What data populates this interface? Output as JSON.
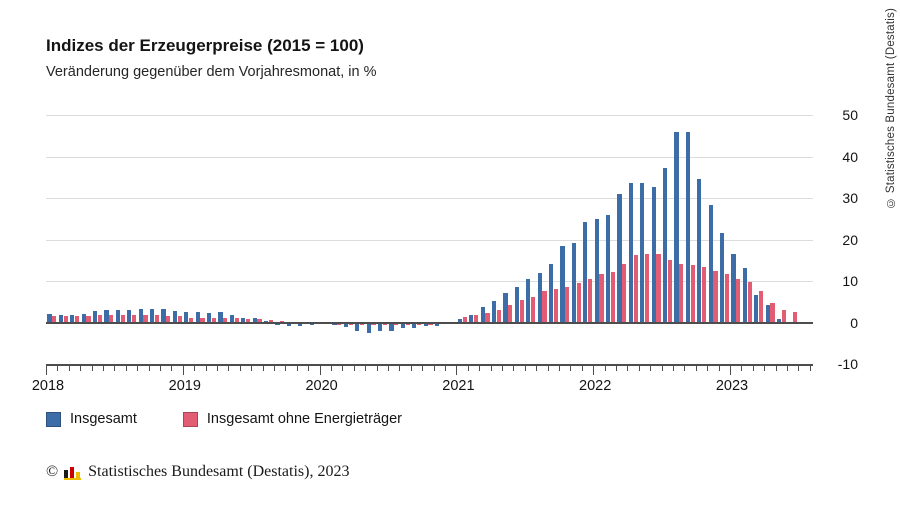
{
  "header": {
    "title": "Indizes der Erzeugerpreise (2015 = 100)",
    "subtitle": "Veränderung gegenüber dem Vorjahresmonat, in %"
  },
  "footer": {
    "copyright_symbol": "©",
    "copyright_text": "Statistisches Bundesamt (Destatis), 2023",
    "logo": "destatis-mini-bars-logo"
  },
  "side_watermark": "© Statistisches Bundesamt (Destatis)",
  "colors": {
    "insgesamt_blue": "#3c6da6",
    "ohne_energie_red": "#e25c74",
    "gridline": "#dcdcdc",
    "axis": "#4d4d4d",
    "logo_black": "#1a1a1a",
    "logo_red": "#cc0000",
    "logo_gold": "#f0bc00"
  },
  "chart_data": {
    "type": "bar",
    "title": "Indizes der Erzeugerpreise (2015 = 100)",
    "subtitle": "Veränderung gegenüber dem Vorjahresmonat, in %",
    "unit": "%",
    "x_start": "2018-01",
    "x_end": "2023-06",
    "months_per_year": 12,
    "x_year_labels": [
      "2018",
      "2019",
      "2020",
      "2021",
      "2022",
      "2023"
    ],
    "y_ticks": [
      50,
      40,
      30,
      20,
      10,
      0,
      -10
    ],
    "ylim": [
      -10,
      50
    ],
    "grid": true,
    "y_axis_side": "right",
    "legend_position": "bottom",
    "series": [
      {
        "name": "Insgesamt",
        "color": "#3c6da6",
        "values": [
          2.1,
          1.8,
          1.9,
          2.0,
          2.7,
          3.0,
          3.0,
          3.1,
          3.2,
          3.3,
          3.3,
          2.7,
          2.6,
          2.6,
          2.4,
          2.5,
          1.9,
          1.2,
          1.1,
          0.3,
          -0.1,
          -0.6,
          -0.7,
          -0.2,
          0.2,
          -0.1,
          -0.8,
          -1.9,
          -2.2,
          -1.8,
          -1.7,
          -1.2,
          -1.0,
          -0.7,
          -0.5,
          0.2,
          0.9,
          1.9,
          3.7,
          5.2,
          7.2,
          8.5,
          10.4,
          12.0,
          14.2,
          18.4,
          19.2,
          24.2,
          25.0,
          25.9,
          30.9,
          33.5,
          33.6,
          32.7,
          37.2,
          45.8,
          45.8,
          34.5,
          28.2,
          21.6,
          16.5,
          13.2,
          6.7,
          4.1,
          0.9,
          0.1
        ]
      },
      {
        "name": "Insgesamt ohne Energieträger",
        "color": "#e25c74",
        "values": [
          1.6,
          1.5,
          1.6,
          1.6,
          1.8,
          1.8,
          1.8,
          1.8,
          1.8,
          1.7,
          1.6,
          1.5,
          1.2,
          1.1,
          1.0,
          1.2,
          1.0,
          0.9,
          0.8,
          0.5,
          0.4,
          0.2,
          0.1,
          0.0,
          0.0,
          -0.1,
          -0.1,
          -0.3,
          -0.4,
          -0.4,
          -0.3,
          -0.3,
          -0.2,
          -0.2,
          0.0,
          0.2,
          1.4,
          1.7,
          2.2,
          3.1,
          4.2,
          5.5,
          6.1,
          7.6,
          8.0,
          8.6,
          9.6,
          10.4,
          11.6,
          12.2,
          14.0,
          16.2,
          16.5,
          16.4,
          15.0,
          14.0,
          13.8,
          13.4,
          12.5,
          11.6,
          10.4,
          9.8,
          7.6,
          4.6,
          2.9,
          2.6
        ]
      }
    ]
  }
}
